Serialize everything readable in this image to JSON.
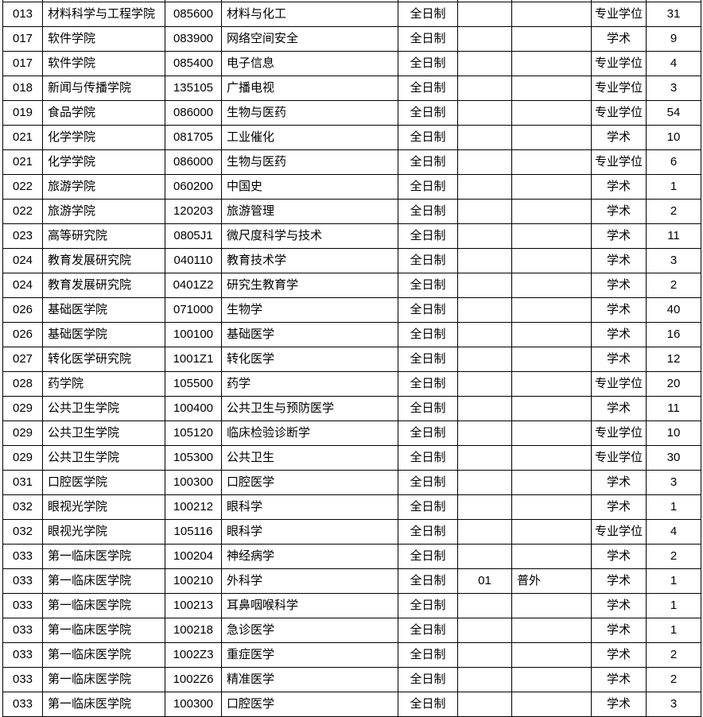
{
  "page": {
    "background_color": "#ffffff",
    "border_color": "#000000",
    "text_color": "#000000"
  },
  "table": {
    "description_columns": [
      "college_code",
      "college_name",
      "major_code",
      "major_name",
      "study_mode",
      "direction_code",
      "direction_name",
      "degree_type",
      "quota"
    ],
    "rows": [
      [
        "013",
        "材料科学与工程学院",
        "085600",
        "材料与化工",
        "全日制",
        "",
        "",
        "专业学位",
        "31"
      ],
      [
        "017",
        "软件学院",
        "083900",
        "网络空间安全",
        "全日制",
        "",
        "",
        "学术",
        "9"
      ],
      [
        "017",
        "软件学院",
        "085400",
        "电子信息",
        "全日制",
        "",
        "",
        "专业学位",
        "4"
      ],
      [
        "018",
        "新闻与传播学院",
        "135105",
        "广播电视",
        "全日制",
        "",
        "",
        "专业学位",
        "3"
      ],
      [
        "019",
        "食品学院",
        "086000",
        "生物与医药",
        "全日制",
        "",
        "",
        "专业学位",
        "54"
      ],
      [
        "021",
        "化学学院",
        "081705",
        "工业催化",
        "全日制",
        "",
        "",
        "学术",
        "10"
      ],
      [
        "021",
        "化学学院",
        "086000",
        "生物与医药",
        "全日制",
        "",
        "",
        "专业学位",
        "6"
      ],
      [
        "022",
        "旅游学院",
        "060200",
        "中国史",
        "全日制",
        "",
        "",
        "学术",
        "1"
      ],
      [
        "022",
        "旅游学院",
        "120203",
        "旅游管理",
        "全日制",
        "",
        "",
        "学术",
        "2"
      ],
      [
        "023",
        "高等研究院",
        "0805J1",
        "微尺度科学与技术",
        "全日制",
        "",
        "",
        "学术",
        "11"
      ],
      [
        "024",
        "教育发展研究院",
        "040110",
        "教育技术学",
        "全日制",
        "",
        "",
        "学术",
        "3"
      ],
      [
        "024",
        "教育发展研究院",
        "0401Z2",
        "研究生教育学",
        "全日制",
        "",
        "",
        "学术",
        "2"
      ],
      [
        "026",
        "基础医学院",
        "071000",
        "生物学",
        "全日制",
        "",
        "",
        "学术",
        "40"
      ],
      [
        "026",
        "基础医学院",
        "100100",
        "基础医学",
        "全日制",
        "",
        "",
        "学术",
        "16"
      ],
      [
        "027",
        "转化医学研究院",
        "1001Z1",
        "转化医学",
        "全日制",
        "",
        "",
        "学术",
        "12"
      ],
      [
        "028",
        "药学院",
        "105500",
        "药学",
        "全日制",
        "",
        "",
        "专业学位",
        "20"
      ],
      [
        "029",
        "公共卫生学院",
        "100400",
        "公共卫生与预防医学",
        "全日制",
        "",
        "",
        "学术",
        "11"
      ],
      [
        "029",
        "公共卫生学院",
        "105120",
        "临床检验诊断学",
        "全日制",
        "",
        "",
        "专业学位",
        "10"
      ],
      [
        "029",
        "公共卫生学院",
        "105300",
        "公共卫生",
        "全日制",
        "",
        "",
        "专业学位",
        "30"
      ],
      [
        "031",
        "口腔医学院",
        "100300",
        "口腔医学",
        "全日制",
        "",
        "",
        "学术",
        "3"
      ],
      [
        "032",
        "眼视光学院",
        "100212",
        "眼科学",
        "全日制",
        "",
        "",
        "学术",
        "1"
      ],
      [
        "032",
        "眼视光学院",
        "105116",
        "眼科学",
        "全日制",
        "",
        "",
        "专业学位",
        "4"
      ],
      [
        "033",
        "第一临床医学院",
        "100204",
        "神经病学",
        "全日制",
        "",
        "",
        "学术",
        "2"
      ],
      [
        "033",
        "第一临床医学院",
        "100210",
        "外科学",
        "全日制",
        "01",
        "普外",
        "学术",
        "1"
      ],
      [
        "033",
        "第一临床医学院",
        "100213",
        "耳鼻咽喉科学",
        "全日制",
        "",
        "",
        "学术",
        "1"
      ],
      [
        "033",
        "第一临床医学院",
        "100218",
        "急诊医学",
        "全日制",
        "",
        "",
        "学术",
        "1"
      ],
      [
        "033",
        "第一临床医学院",
        "1002Z3",
        "重症医学",
        "全日制",
        "",
        "",
        "学术",
        "2"
      ],
      [
        "033",
        "第一临床医学院",
        "1002Z6",
        "精准医学",
        "全日制",
        "",
        "",
        "学术",
        "2"
      ],
      [
        "033",
        "第一临床医学院",
        "100300",
        "口腔医学",
        "全日制",
        "",
        "",
        "学术",
        "3"
      ]
    ]
  }
}
